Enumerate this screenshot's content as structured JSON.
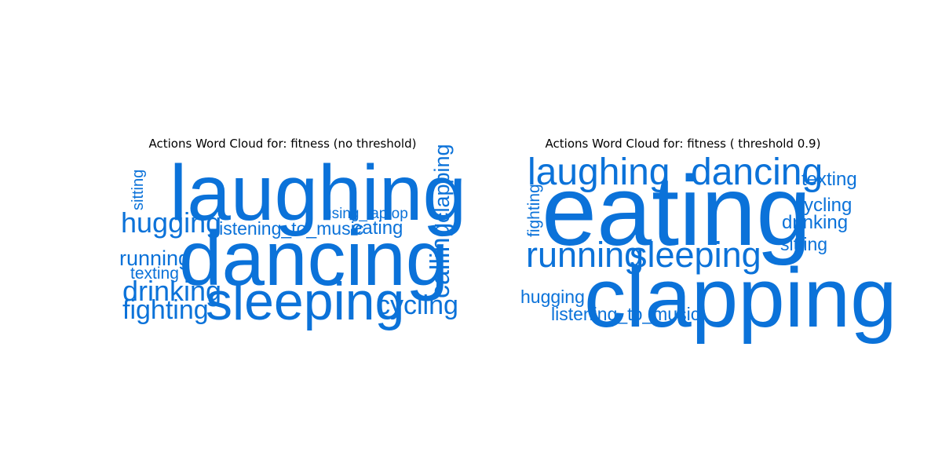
{
  "accent": "#0b72d9",
  "chart_data": [
    {
      "type": "wordcloud",
      "title": "Actions Word Cloud for: fitness (no threshold)",
      "color": "#0b72d9",
      "words": [
        {
          "text": "laughing",
          "weight": 1.0,
          "orientation": "horizontal"
        },
        {
          "text": "dancing",
          "weight": 0.98,
          "orientation": "horizontal"
        },
        {
          "text": "sleeping",
          "weight": 0.68,
          "orientation": "horizontal"
        },
        {
          "text": "hugging",
          "weight": 0.36,
          "orientation": "horizontal"
        },
        {
          "text": "drinking",
          "weight": 0.36,
          "orientation": "horizontal"
        },
        {
          "text": "calling",
          "weight": 0.34,
          "orientation": "vertical"
        },
        {
          "text": "cycling",
          "weight": 0.34,
          "orientation": "horizontal"
        },
        {
          "text": "fighting",
          "weight": 0.34,
          "orientation": "horizontal"
        },
        {
          "text": "running",
          "weight": 0.27,
          "orientation": "horizontal"
        },
        {
          "text": "clapping",
          "weight": 0.27,
          "orientation": "vertical"
        },
        {
          "text": "eating",
          "weight": 0.24,
          "orientation": "horizontal"
        },
        {
          "text": "listening_to_music",
          "weight": 0.23,
          "orientation": "horizontal"
        },
        {
          "text": "texting",
          "weight": 0.21,
          "orientation": "horizontal"
        },
        {
          "text": "sitting",
          "weight": 0.2,
          "orientation": "vertical"
        },
        {
          "text": "using_laptop",
          "weight": 0.19,
          "orientation": "horizontal"
        }
      ]
    },
    {
      "type": "wordcloud",
      "title": "Actions Word Cloud for: fitness ( threshold 0.9)",
      "color": "#0b72d9",
      "words": [
        {
          "text": "eating",
          "weight": 1.0,
          "orientation": "horizontal"
        },
        {
          "text": "clapping",
          "weight": 0.85,
          "orientation": "horizontal"
        },
        {
          "text": "laughing",
          "weight": 0.38,
          "orientation": "horizontal"
        },
        {
          "text": "dancing",
          "weight": 0.38,
          "orientation": "horizontal"
        },
        {
          "text": "running",
          "weight": 0.36,
          "orientation": "horizontal"
        },
        {
          "text": "sleeping",
          "weight": 0.36,
          "orientation": "horizontal"
        },
        {
          "text": "texting",
          "weight": 0.19,
          "orientation": "horizontal"
        },
        {
          "text": "cycling",
          "weight": 0.19,
          "orientation": "horizontal"
        },
        {
          "text": "drinking",
          "weight": 0.19,
          "orientation": "horizontal"
        },
        {
          "text": "sitting",
          "weight": 0.18,
          "orientation": "horizontal"
        },
        {
          "text": "hugging",
          "weight": 0.18,
          "orientation": "horizontal"
        },
        {
          "text": "listening_to_music",
          "weight": 0.18,
          "orientation": "horizontal"
        },
        {
          "text": "fighting",
          "weight": 0.17,
          "orientation": "vertical"
        }
      ]
    }
  ]
}
